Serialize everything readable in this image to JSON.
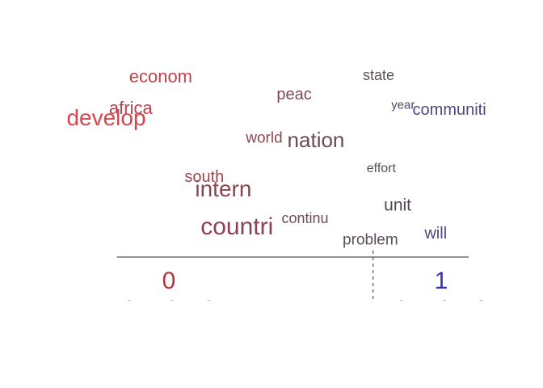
{
  "chart_data": {
    "type": "scatter",
    "description_kind": "topic word plot",
    "xlim": [
      -0.36,
      1.1
    ],
    "words": [
      {
        "term": "econom",
        "x": -0.03,
        "y": 9.5,
        "size": 22,
        "color": "#c2414a"
      },
      {
        "term": "state",
        "x": 0.77,
        "y": 9.6,
        "size": 18,
        "color": "#5b5056"
      },
      {
        "term": "peac",
        "x": 0.46,
        "y": 8.4,
        "size": 20,
        "color": "#7d4a53"
      },
      {
        "term": "year",
        "x": 0.86,
        "y": 7.7,
        "size": 15,
        "color": "#4f4863"
      },
      {
        "term": "communiti",
        "x": 1.03,
        "y": 7.4,
        "size": 20,
        "color": "#4a4a80"
      },
      {
        "term": "africa",
        "x": -0.14,
        "y": 7.5,
        "size": 22,
        "color": "#b84350"
      },
      {
        "term": "develop",
        "x": -0.23,
        "y": 6.9,
        "size": 28,
        "color": "#d9434a"
      },
      {
        "term": "world",
        "x": 0.35,
        "y": 5.6,
        "size": 19,
        "color": "#8a4a52"
      },
      {
        "term": "nation",
        "x": 0.54,
        "y": 5.5,
        "size": 26,
        "color": "#6b4b56"
      },
      {
        "term": "effort",
        "x": 0.78,
        "y": 3.7,
        "size": 16,
        "color": "#5a4f58"
      },
      {
        "term": "south",
        "x": 0.13,
        "y": 3.2,
        "size": 20,
        "color": "#9c4651"
      },
      {
        "term": "intern",
        "x": 0.2,
        "y": 2.4,
        "size": 28,
        "color": "#8b4552"
      },
      {
        "term": "unit",
        "x": 0.84,
        "y": 1.4,
        "size": 21,
        "color": "#52465c"
      },
      {
        "term": "continu",
        "x": 0.5,
        "y": 0.6,
        "size": 18,
        "color": "#6d4c57"
      },
      {
        "term": "countri",
        "x": 0.25,
        "y": 0.0,
        "size": 30,
        "color": "#8c4150"
      },
      {
        "term": "will",
        "x": 0.98,
        "y": -0.4,
        "size": 20,
        "color": "#4b4a7c"
      },
      {
        "term": "problem",
        "x": 0.74,
        "y": -0.8,
        "size": 19,
        "color": "#5a4e58"
      }
    ],
    "baseline": {
      "from": -0.2,
      "to": 1.0,
      "color": "#555555"
    },
    "marker": {
      "x": 0.75,
      "style": "dashed",
      "color": "#555555"
    },
    "axis_labels": [
      {
        "value": "0",
        "caption": "(Topic 0)",
        "x": 0.0,
        "color": "#c0303a"
      },
      {
        "value": "1",
        "caption": "(Topic 1)",
        "x": 1.0,
        "color": "#3030c0"
      }
    ]
  },
  "layout_ranges": {
    "ylim": [
      -1.6,
      10.5
    ]
  }
}
